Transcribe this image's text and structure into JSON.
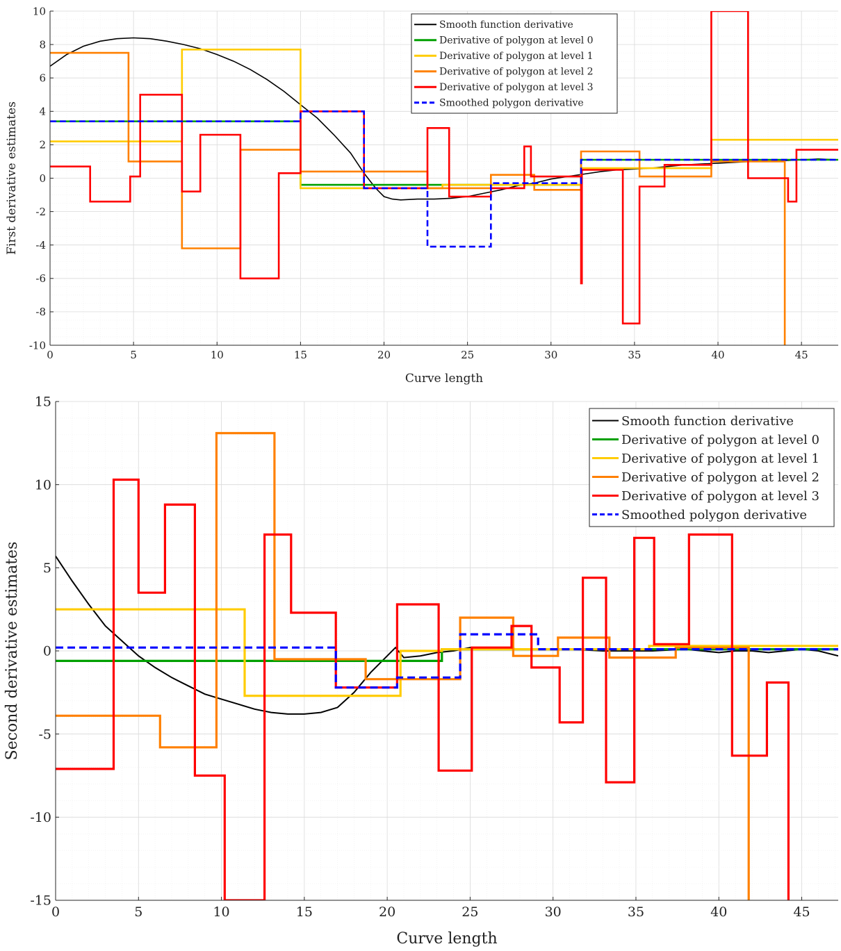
{
  "chart_data": [
    {
      "type": "line",
      "xlabel": "Curve length",
      "ylabel": "First derivative estimates",
      "xlim": [
        0,
        47.2
      ],
      "ylim": [
        -10,
        10
      ],
      "xticks": [
        "0",
        "5",
        "10",
        "15",
        "20",
        "25",
        "30",
        "35",
        "40",
        "45"
      ],
      "yticks": [
        "-10",
        "-8",
        "-6",
        "-4",
        "-2",
        "0",
        "2",
        "4",
        "6",
        "8",
        "10"
      ],
      "legend": "top-right",
      "grid": "minor",
      "series": [
        {
          "name": "Smooth function derivative",
          "color": "#000000",
          "dash": false,
          "style": "line",
          "x": [
            0,
            1,
            2,
            3,
            4,
            5,
            6,
            7,
            8,
            9,
            10,
            11,
            12,
            13,
            14,
            15,
            16,
            17,
            18,
            18.8,
            19.5,
            20,
            20.5,
            21,
            22,
            23,
            24,
            25,
            26,
            27,
            28,
            29,
            30,
            31,
            32,
            33,
            34,
            35,
            36,
            37,
            38,
            39,
            40,
            41,
            42,
            43,
            44,
            45,
            46,
            47.2
          ],
          "y": [
            6.7,
            7.4,
            7.9,
            8.2,
            8.35,
            8.4,
            8.35,
            8.2,
            8.0,
            7.75,
            7.4,
            7.0,
            6.5,
            5.9,
            5.2,
            4.4,
            3.6,
            2.6,
            1.5,
            0.3,
            -0.6,
            -1.1,
            -1.25,
            -1.3,
            -1.25,
            -1.25,
            -1.2,
            -1.1,
            -0.9,
            -0.7,
            -0.45,
            -0.3,
            -0.05,
            0.1,
            0.25,
            0.4,
            0.5,
            0.55,
            0.6,
            0.7,
            0.8,
            0.85,
            0.9,
            0.95,
            1.0,
            1.0,
            1.05,
            1.1,
            1.15,
            1.1
          ]
        },
        {
          "name": "Derivative of polygon at level 0",
          "color": "#00a000",
          "dash": false,
          "style": "step",
          "x": [
            0,
            15,
            15,
            31.8,
            31.8,
            47.2
          ],
          "y": [
            3.4,
            3.4,
            -0.4,
            -0.4,
            1.1,
            1.1
          ]
        },
        {
          "name": "Derivative of polygon at level 1",
          "color": "#ffcc00",
          "dash": false,
          "style": "step",
          "x": [
            0,
            7.9,
            7.9,
            15,
            15,
            23.5,
            23.5,
            31.8,
            31.8,
            39.6,
            39.6,
            47.2
          ],
          "y": [
            2.2,
            2.2,
            7.7,
            7.7,
            -0.6,
            -0.6,
            -0.4,
            -0.4,
            0.6,
            0.6,
            2.3,
            2.3
          ]
        },
        {
          "name": "Derivative of polygon at level 2",
          "color": "#ff8000",
          "dash": false,
          "style": "step",
          "x": [
            0,
            4.7,
            4.7,
            7.9,
            7.9,
            11.4,
            11.4,
            15,
            15,
            22.6,
            22.6,
            26.4,
            26.4,
            29,
            29,
            31.8,
            31.8,
            35.3,
            35.3,
            39.6,
            39.6,
            44.0,
            44.0
          ],
          "y": [
            7.5,
            7.5,
            1.0,
            1.0,
            -4.2,
            -4.2,
            1.7,
            1.7,
            0.4,
            0.4,
            -0.6,
            -0.6,
            0.2,
            0.2,
            -0.7,
            -0.7,
            1.6,
            1.6,
            0.1,
            0.1,
            1.0,
            1.0,
            -10
          ]
        },
        {
          "name": "Derivative of polygon at level 3",
          "color": "#ff0000",
          "dash": false,
          "style": "step",
          "x": [
            0,
            2.4,
            2.4,
            4.8,
            4.8,
            5.4,
            5.4,
            7.9,
            7.9,
            9.0,
            9.0,
            11.4,
            11.4,
            13.7,
            13.7,
            15,
            15,
            18.8,
            18.8,
            22.6,
            22.6,
            23.9,
            23.9,
            26.4,
            26.4,
            28.4,
            28.4,
            28.8,
            28.8,
            31.8,
            31.8,
            31.85,
            31.85,
            34.3,
            34.3,
            35.3,
            35.3,
            36.8,
            36.8,
            39.6,
            39.6,
            41.8,
            41.8,
            44.2,
            44.2,
            44.7,
            44.7,
            47.2
          ],
          "y": [
            0.7,
            0.7,
            -1.4,
            -1.4,
            0.1,
            0.1,
            5.0,
            5.0,
            -0.8,
            -0.8,
            2.6,
            2.6,
            -6.0,
            -6.0,
            0.3,
            0.3,
            4.0,
            4.0,
            -0.6,
            -0.6,
            3.0,
            3.0,
            -1.1,
            -1.1,
            -0.6,
            -0.6,
            1.9,
            1.9,
            0.1,
            0.1,
            -6.3,
            -6.3,
            0.5,
            0.5,
            -8.7,
            -8.7,
            -0.5,
            -0.5,
            0.8,
            0.8,
            10.0,
            10.0,
            0.0,
            0.0,
            -1.4,
            -1.4,
            1.7,
            1.7
          ]
        },
        {
          "name": "Smoothed polygon derivative",
          "color": "#0000ff",
          "dash": true,
          "style": "step",
          "x": [
            0,
            15,
            15,
            18.8,
            18.8,
            22.6,
            22.6,
            26.4,
            26.4,
            31.8,
            31.8,
            47.2
          ],
          "y": [
            3.4,
            3.4,
            4.0,
            4.0,
            -0.6,
            -0.6,
            -4.1,
            -4.1,
            -0.3,
            -0.3,
            1.1,
            1.1
          ]
        }
      ]
    },
    {
      "type": "line",
      "xlabel": "Curve length",
      "ylabel": "Second derivative estimates",
      "xlim": [
        0,
        47.2
      ],
      "ylim": [
        -15,
        15
      ],
      "xticks": [
        "0",
        "5",
        "10",
        "15",
        "20",
        "25",
        "30",
        "35",
        "40",
        "45"
      ],
      "yticks": [
        "-15",
        "-10",
        "-5",
        "0",
        "5",
        "10",
        "15"
      ],
      "legend": "top-right",
      "grid": "minor",
      "series": [
        {
          "name": "Smooth function derivative",
          "color": "#000000",
          "dash": false,
          "style": "line",
          "x": [
            0,
            1,
            2,
            3,
            4,
            5,
            6,
            7,
            8,
            9,
            10,
            11,
            12,
            13,
            14,
            15,
            16,
            17,
            18,
            19,
            20,
            20.5,
            21,
            22,
            23,
            24,
            25,
            26,
            27,
            28,
            29,
            30,
            31,
            32,
            33,
            34,
            35,
            36,
            37,
            38,
            39,
            40,
            41,
            42,
            43,
            44,
            45,
            46,
            47.2
          ],
          "y": [
            5.7,
            4.2,
            2.8,
            1.5,
            0.6,
            -0.3,
            -1.0,
            -1.6,
            -2.1,
            -2.6,
            -2.9,
            -3.2,
            -3.5,
            -3.7,
            -3.8,
            -3.8,
            -3.7,
            -3.4,
            -2.5,
            -1.3,
            -0.3,
            0.2,
            -0.4,
            -0.3,
            -0.1,
            0.0,
            0.2,
            0.2,
            0.2,
            0.1,
            0.1,
            0.1,
            0.1,
            0.05,
            0.0,
            0.0,
            0.0,
            0.0,
            0.05,
            0.1,
            0.0,
            -0.1,
            0.0,
            0.0,
            -0.1,
            0.0,
            0.1,
            0.0,
            -0.3
          ]
        },
        {
          "name": "Derivative of polygon at level 0",
          "color": "#00a000",
          "dash": false,
          "style": "step",
          "x": [
            0,
            23.3,
            23.3,
            47.2
          ],
          "y": [
            -0.6,
            -0.6,
            0.1,
            0.1
          ]
        },
        {
          "name": "Derivative of polygon at level 1",
          "color": "#ffcc00",
          "dash": false,
          "style": "step",
          "x": [
            0,
            11.4,
            11.4,
            20.8,
            20.8,
            23.3,
            23.3,
            35.8,
            35.8,
            47.2
          ],
          "y": [
            2.5,
            2.5,
            -2.7,
            -2.7,
            0.0,
            0.0,
            0.1,
            0.1,
            0.3,
            0.3
          ]
        },
        {
          "name": "Derivative of polygon at level 2",
          "color": "#ff8000",
          "dash": false,
          "style": "step",
          "x": [
            0,
            6.3,
            6.3,
            9.7,
            9.7,
            13.2,
            13.2,
            18.7,
            18.7,
            24.4,
            24.4,
            27.6,
            27.6,
            30.3,
            30.3,
            33.4,
            33.4,
            37.4,
            37.4,
            41.8,
            41.8
          ],
          "y": [
            -3.9,
            -3.9,
            -5.8,
            -5.8,
            13.1,
            13.1,
            -0.5,
            -0.5,
            -1.7,
            -1.7,
            2.0,
            2.0,
            -0.3,
            -0.3,
            0.8,
            0.8,
            -0.4,
            -0.4,
            0.2,
            0.2,
            -15
          ]
        },
        {
          "name": "Derivative of polygon at level 3",
          "color": "#ff0000",
          "dash": false,
          "style": "step",
          "x": [
            0,
            3.5,
            3.5,
            5.0,
            5.0,
            6.6,
            6.6,
            8.4,
            8.4,
            10.2,
            10.2,
            12.6,
            12.6,
            12.6,
            12.6,
            14.2,
            14.2,
            16.9,
            16.9,
            20.6,
            20.6,
            23.1,
            23.1,
            25.1,
            25.1,
            27.5,
            27.5,
            28.7,
            28.7,
            30.4,
            30.4,
            31.8,
            31.8,
            33.2,
            33.2,
            34.9,
            34.9,
            36.1,
            36.1,
            38.2,
            38.2,
            40.8,
            40.8,
            42.9,
            42.9,
            44.2,
            44.2
          ],
          "y": [
            -7.1,
            -7.1,
            10.3,
            10.3,
            3.5,
            3.5,
            8.8,
            8.8,
            -7.5,
            -7.5,
            -15,
            -15,
            7.0,
            7.0,
            7.0,
            7.0,
            2.3,
            2.3,
            -2.2,
            -2.2,
            2.8,
            2.8,
            -7.2,
            -7.2,
            0.2,
            0.2,
            1.5,
            1.5,
            -1.0,
            -1.0,
            -4.3,
            -4.3,
            4.4,
            4.4,
            -7.9,
            -7.9,
            6.8,
            6.8,
            0.4,
            0.4,
            7.0,
            7.0,
            -6.3,
            -6.3,
            -1.9,
            -1.9,
            -15
          ]
        },
        {
          "name": "Smoothed polygon derivative",
          "color": "#0000ff",
          "dash": true,
          "style": "step",
          "x": [
            0,
            16.9,
            16.9,
            20.6,
            20.6,
            24.4,
            24.4,
            29.1,
            29.1,
            29.1,
            47.2
          ],
          "y": [
            0.2,
            0.2,
            -2.2,
            -2.2,
            -1.6,
            -1.6,
            1.0,
            1.0,
            0.1,
            0.1,
            0.1
          ]
        }
      ]
    }
  ]
}
